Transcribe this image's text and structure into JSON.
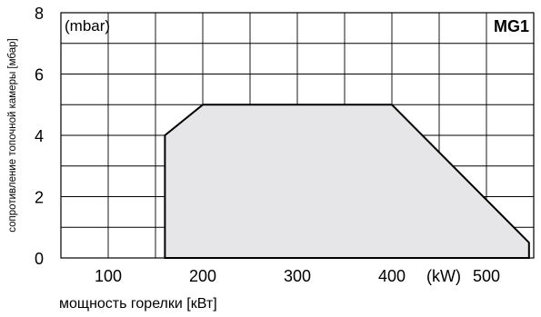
{
  "chart_data": {
    "type": "area",
    "title": "MG1",
    "y_unit": "(mbar)",
    "x_unit": "(kW)",
    "xlabel": "мощность горелки [кВт]",
    "ylabel": "сопротивление топочной камеры [мбар]",
    "xlim": [
      50,
      550
    ],
    "ylim": [
      0,
      8
    ],
    "x_ticks": [
      "100",
      "200",
      "300",
      "400",
      "500"
    ],
    "x_tick_values": [
      100,
      200,
      300,
      400,
      500
    ],
    "y_ticks": [
      "0",
      "2",
      "4",
      "6",
      "8"
    ],
    "y_tick_values": [
      0,
      2,
      4,
      6,
      8
    ],
    "grid": true,
    "series": [
      {
        "x": [
          160,
          160,
          200,
          400,
          545,
          545
        ],
        "y": [
          0,
          4,
          5,
          5,
          0.5,
          0
        ]
      }
    ],
    "fill_color": "#e6e6e8",
    "line_color": "#000000"
  }
}
